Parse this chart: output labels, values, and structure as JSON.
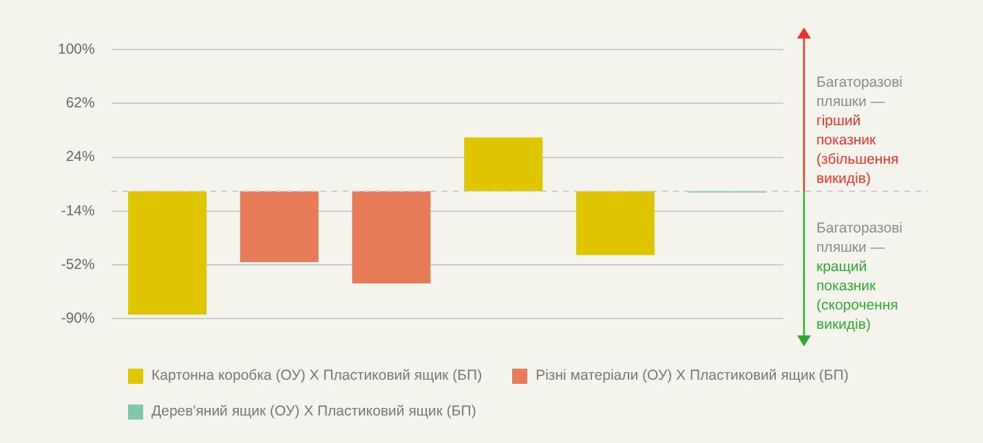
{
  "chart_data": {
    "type": "bar",
    "categories": [
      null,
      null,
      null,
      null,
      null,
      null
    ],
    "series": [
      {
        "name": "Картонна коробка (ОУ) Х Пластиковий ящик (БП)",
        "color": "#dfc400",
        "values": [
          -87,
          null,
          null,
          38,
          -45,
          null
        ]
      },
      {
        "name": "Різні матеріали (ОУ) Х Пластиковий ящик (БП)",
        "color": "#e87b57",
        "values": [
          null,
          -50,
          -65,
          null,
          null,
          null
        ]
      },
      {
        "name": "Дерев'яний ящик (ОУ) Х Пластиковий ящик (БП)",
        "color": "#85c7aa",
        "values": [
          null,
          null,
          null,
          null,
          null,
          -1
        ]
      }
    ],
    "ylim": [
      -90,
      100
    ],
    "yticks": [
      {
        "value": 100,
        "label": "100%"
      },
      {
        "value": 62,
        "label": "62%"
      },
      {
        "value": 24,
        "label": "24%"
      },
      {
        "value": -14,
        "label": "-14%"
      },
      {
        "value": -52,
        "label": "-52%"
      },
      {
        "value": -90,
        "label": "-90%"
      }
    ],
    "grid": "y",
    "tick_labels": "y",
    "legend": "bottom",
    "ref_lines": [
      {
        "axis": "y",
        "value": 0,
        "color": "#cccccc",
        "line_style": "dashed"
      }
    ],
    "annotations": [
      "Багаторазові пляшки —",
      "гірший показник (збільшення викидів)",
      "Багаторазові пляшки —",
      "кращий показник (скорочення викидів)"
    ]
  }
}
